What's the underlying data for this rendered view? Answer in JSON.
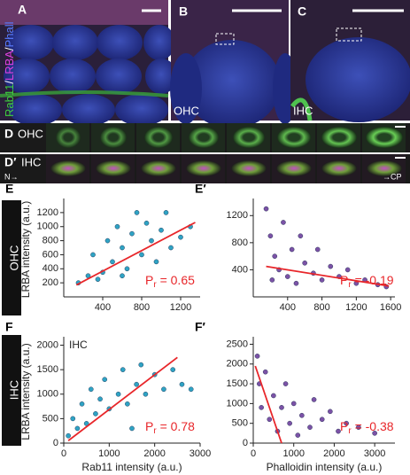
{
  "panels": {
    "a": {
      "letter": "A",
      "stain": {
        "rab11": "Rab11",
        "sep1": "/",
        "lrba": "LRBA",
        "sep2": "/",
        "phall": "Phall"
      }
    },
    "b": {
      "letter": "B",
      "label": "OHC"
    },
    "c": {
      "letter": "C",
      "label": "IHC"
    },
    "d": {
      "letter": "D",
      "label": "OHC"
    },
    "d2": {
      "letter": "D′",
      "label": "IHC",
      "left_axis": "N→",
      "right_axis": "→CP"
    }
  },
  "row_tags": [
    "OHC",
    "IHC"
  ],
  "chart_data": [
    {
      "type": "scatter",
      "letter": "E",
      "ylabel": "LRBA intensity (a.u.)",
      "color": "#2fa3c4",
      "x": [
        150,
        250,
        300,
        400,
        450,
        500,
        550,
        600,
        650,
        700,
        750,
        800,
        850,
        900,
        950,
        1000,
        1050,
        1100,
        1200,
        1300,
        350,
        600
      ],
      "y": [
        200,
        300,
        600,
        350,
        800,
        500,
        1000,
        700,
        400,
        900,
        1200,
        600,
        1050,
        800,
        500,
        950,
        1200,
        700,
        850,
        1000,
        250,
        300
      ],
      "fit": {
        "x": [
          130,
          1350
        ],
        "y": [
          170,
          1060
        ],
        "color": "#e8262a"
      },
      "annotation": {
        "symbol": "P",
        "sub": "r",
        "text": " = 0.65"
      },
      "xlim": [
        0,
        1400
      ],
      "xticks": [
        400,
        800,
        1200
      ],
      "ylim": [
        0,
        1350
      ],
      "yticks": [
        200,
        400,
        600,
        800,
        1000,
        1200
      ]
    },
    {
      "type": "scatter",
      "letter": "E′",
      "color": "#7b52a6",
      "x": [
        150,
        200,
        250,
        300,
        350,
        400,
        450,
        500,
        550,
        600,
        700,
        750,
        800,
        900,
        1000,
        1100,
        1200,
        1300,
        1450,
        1550,
        220
      ],
      "y": [
        1300,
        900,
        600,
        400,
        1100,
        300,
        700,
        200,
        900,
        500,
        350,
        700,
        250,
        450,
        300,
        400,
        200,
        250,
        180,
        150,
        250
      ],
      "fit": {
        "x": [
          150,
          1580
        ],
        "y": [
          450,
          160
        ],
        "color": "#e8262a"
      },
      "annotation": {
        "symbol": "P",
        "sub": "r",
        "text": " = -0.19"
      },
      "xlim": [
        0,
        1650
      ],
      "xticks": [
        400,
        800,
        1200,
        1600
      ],
      "ylim": [
        0,
        1400
      ],
      "yticks": [
        400,
        800,
        1200
      ]
    },
    {
      "type": "scatter",
      "letter": "F",
      "ylabel": "LRBA intensity (a.u.)",
      "xlabel": "Rab11 intensity (a.u.)",
      "inset": "IHC",
      "color": "#2fa3c4",
      "x": [
        100,
        200,
        300,
        400,
        500,
        600,
        700,
        800,
        900,
        1000,
        1200,
        1300,
        1400,
        1600,
        1700,
        1800,
        2000,
        2200,
        2400,
        2600,
        2800,
        1500
      ],
      "y": [
        150,
        500,
        300,
        800,
        400,
        1100,
        600,
        900,
        1300,
        700,
        1000,
        1500,
        800,
        1200,
        1600,
        1000,
        1400,
        1100,
        1500,
        1200,
        1100,
        300
      ],
      "fit": {
        "x": [
          100,
          2500
        ],
        "y": [
          50,
          1750
        ],
        "color": "#e8262a"
      },
      "annotation": {
        "symbol": "P",
        "sub": "r",
        "text": " = 0.78"
      },
      "xlim": [
        0,
        3000
      ],
      "xticks": [
        0,
        1000,
        2000,
        3000
      ],
      "ylim": [
        0,
        2100
      ],
      "yticks": [
        0,
        500,
        1000,
        1500,
        2000
      ]
    },
    {
      "type": "scatter",
      "letter": "F′",
      "xlabel": "Phalloidin intensity (a.u.)",
      "color": "#7b52a6",
      "x": [
        100,
        150,
        200,
        300,
        400,
        500,
        600,
        700,
        800,
        900,
        1000,
        1200,
        1400,
        1500,
        1700,
        1900,
        2100,
        2300,
        2600,
        3000,
        1100
      ],
      "y": [
        2200,
        1500,
        900,
        1800,
        600,
        1200,
        300,
        900,
        1500,
        500,
        1000,
        700,
        400,
        1100,
        600,
        800,
        300,
        500,
        400,
        250,
        200
      ],
      "fit": {
        "x": [
          50,
          700
        ],
        "y": [
          1950,
          0
        ],
        "color": "#e8262a"
      },
      "annotation": {
        "symbol": "P",
        "sub": "r",
        "text": " = -0.38"
      },
      "xlim": [
        0,
        3500
      ],
      "xticks": [
        0,
        1000,
        2000,
        3000
      ],
      "ylim": [
        0,
        2600
      ],
      "yticks": [
        0,
        500,
        1000,
        1500,
        2000,
        2500
      ]
    }
  ]
}
